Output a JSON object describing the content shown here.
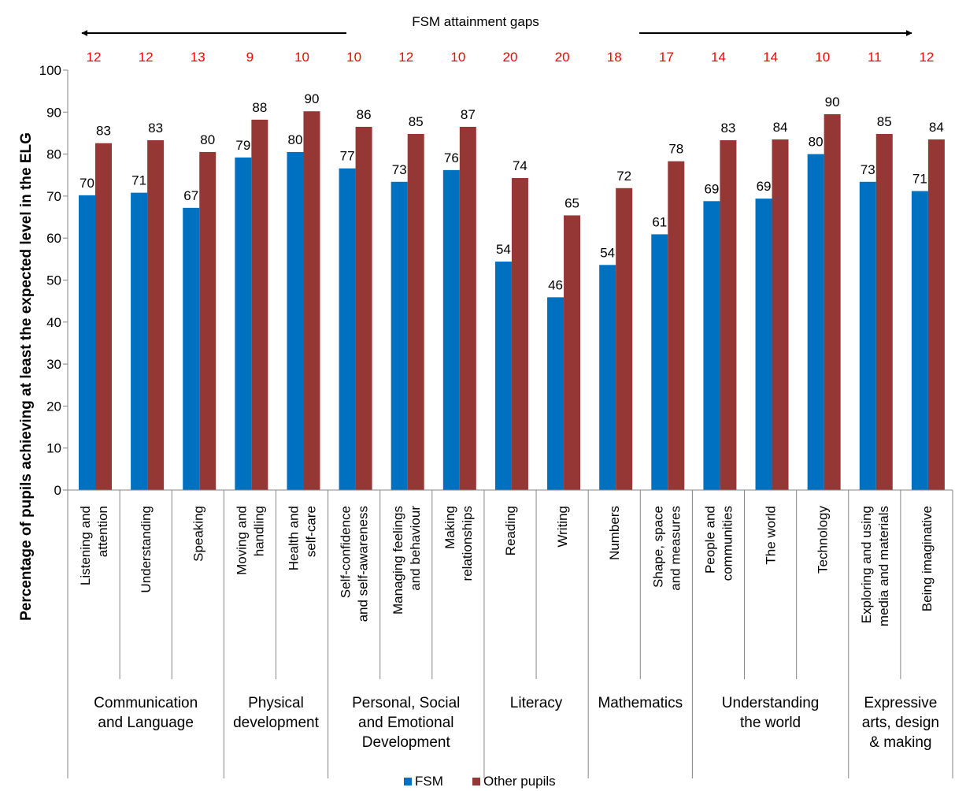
{
  "chart_data": {
    "type": "bar",
    "title": "",
    "ylabel": "Percentage of pupils achieving at least the expected level in the ELG",
    "ylim": [
      0,
      100
    ],
    "yticks": [
      0,
      10,
      20,
      30,
      40,
      50,
      60,
      70,
      80,
      90,
      100
    ],
    "categories": [
      "Listening and attention",
      "Understanding",
      "Speaking",
      "Moving and handling",
      "Health and self-care",
      "Self-confidence and self-awareness",
      "Managing feelings and behaviour",
      "Making relationships",
      "Reading",
      "Writing",
      "Numbers",
      "Shape, space and measures",
      "People and communities",
      "The world",
      "Technology",
      "Exploring and using media and materials",
      "Being imaginative"
    ],
    "category_label_lines": [
      [
        "Listening and",
        "attention"
      ],
      [
        "Understanding"
      ],
      [
        "Speaking"
      ],
      [
        "Moving and",
        "handling"
      ],
      [
        "Health and",
        "self-care"
      ],
      [
        "Self-confidence",
        "and self-awareness"
      ],
      [
        "Managing feelings",
        "and behaviour"
      ],
      [
        "Making",
        "relationships"
      ],
      [
        "Reading"
      ],
      [
        "Writing"
      ],
      [
        "Numbers"
      ],
      [
        "Shape, space",
        "and measures"
      ],
      [
        "People and",
        "communities"
      ],
      [
        "The world"
      ],
      [
        "Technology"
      ],
      [
        "Exploring and using",
        "media and materials"
      ],
      [
        "Being imaginative"
      ]
    ],
    "groups": [
      {
        "lines": [
          "Communication",
          "and Language"
        ],
        "start": 0,
        "end": 2
      },
      {
        "lines": [
          "Physical",
          "development"
        ],
        "start": 3,
        "end": 4
      },
      {
        "lines": [
          "Personal, Social",
          "and Emotional",
          "Development"
        ],
        "start": 5,
        "end": 7
      },
      {
        "lines": [
          "Literacy"
        ],
        "start": 8,
        "end": 9
      },
      {
        "lines": [
          "Mathematics"
        ],
        "start": 10,
        "end": 11
      },
      {
        "lines": [
          "Understanding",
          "the world"
        ],
        "start": 12,
        "end": 14
      },
      {
        "lines": [
          "Expressive",
          "arts, design",
          "& making"
        ],
        "start": 15,
        "end": 16
      }
    ],
    "series": [
      {
        "name": "FSM",
        "color": "#0070C0",
        "values": [
          70.2,
          70.8,
          67.2,
          79.2,
          80.5,
          76.6,
          73.4,
          76.2,
          54.4,
          45.9,
          53.6,
          60.9,
          68.8,
          69.4,
          80.0,
          73.4,
          71.2
        ],
        "labels": [
          "70",
          "71",
          "67",
          "79",
          "80",
          "77",
          "73",
          "76",
          "54",
          "46",
          "54",
          "61",
          "69",
          "69",
          "80",
          "73",
          "71"
        ]
      },
      {
        "name": "Other pupils",
        "color": "#953735",
        "values": [
          82.6,
          83.3,
          80.5,
          88.2,
          90.2,
          86.5,
          84.8,
          86.5,
          74.3,
          65.4,
          71.9,
          78.3,
          83.3,
          83.5,
          89.5,
          84.8,
          83.5
        ],
        "labels": [
          "83",
          "83",
          "80",
          "88",
          "90",
          "86",
          "85",
          "87",
          "74",
          "65",
          "72",
          "78",
          "83",
          "84",
          "90",
          "85",
          "84"
        ]
      }
    ],
    "gaps_title": "FSM attainment gaps",
    "gaps": [
      "12",
      "12",
      "13",
      "9",
      "10",
      "10",
      "12",
      "10",
      "20",
      "20",
      "18",
      "17",
      "14",
      "14",
      "10",
      "11",
      "12"
    ],
    "gap_color": "#FF0000",
    "legend_position": "bottom",
    "grid": false
  }
}
